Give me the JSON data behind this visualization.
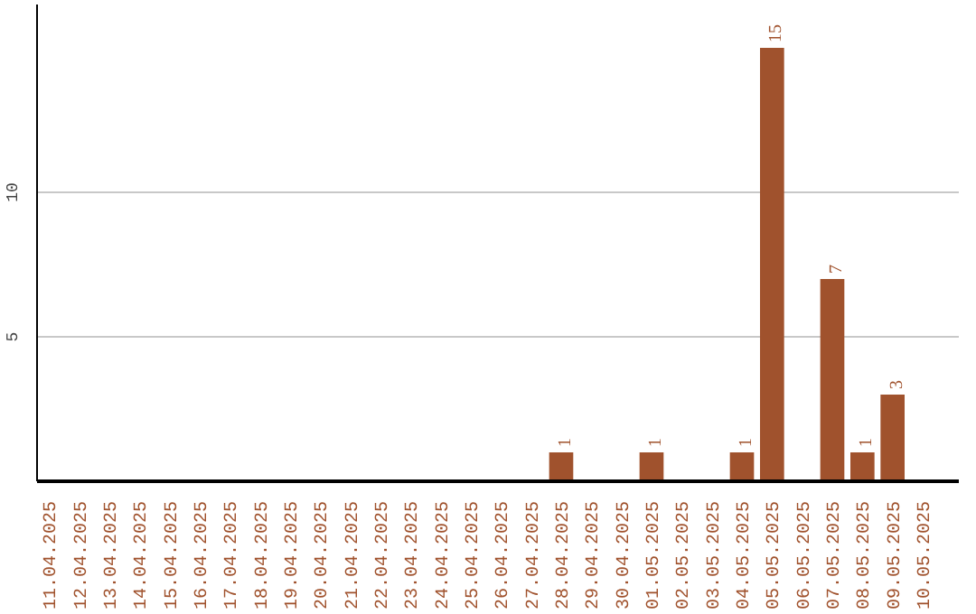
{
  "chart_data": {
    "type": "bar",
    "categories": [
      "11.04.2025",
      "12.04.2025",
      "13.04.2025",
      "14.04.2025",
      "15.04.2025",
      "16.04.2025",
      "17.04.2025",
      "18.04.2025",
      "19.04.2025",
      "20.04.2025",
      "21.04.2025",
      "22.04.2025",
      "23.04.2025",
      "24.04.2025",
      "25.04.2025",
      "26.04.2025",
      "27.04.2025",
      "28.04.2025",
      "29.04.2025",
      "30.04.2025",
      "01.05.2025",
      "02.05.2025",
      "03.05.2025",
      "04.05.2025",
      "05.05.2025",
      "06.05.2025",
      "07.05.2025",
      "08.05.2025",
      "09.05.2025",
      "10.05.2025"
    ],
    "values": [
      0,
      0,
      0,
      0,
      0,
      0,
      0,
      0,
      0,
      0,
      0,
      0,
      0,
      0,
      0,
      0,
      0,
      1,
      0,
      0,
      1,
      0,
      0,
      1,
      15,
      0,
      7,
      1,
      3,
      0
    ],
    "value_labels": [
      null,
      null,
      null,
      null,
      null,
      null,
      null,
      null,
      null,
      null,
      null,
      null,
      null,
      null,
      null,
      null,
      null,
      "1",
      null,
      null,
      "1",
      null,
      null,
      "1",
      "15",
      null,
      "7",
      "1",
      "3",
      null
    ],
    "color": "#a0522d",
    "ylim": [
      0,
      16.5
    ],
    "yticks": [
      5,
      10
    ],
    "grid": "y"
  }
}
